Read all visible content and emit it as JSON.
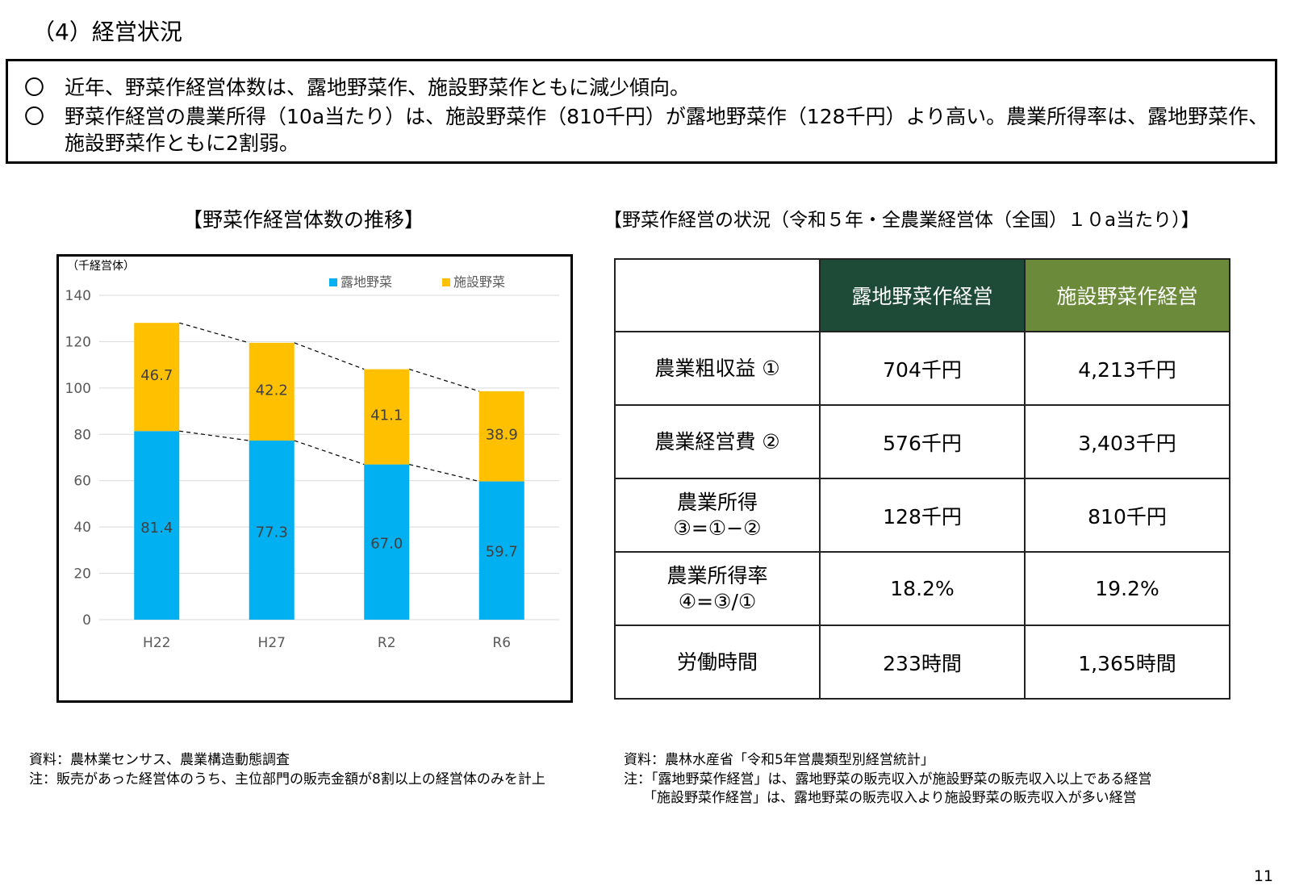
{
  "page": {
    "title": "（4）経営状況",
    "page_number": "11"
  },
  "summary": {
    "bullet_mark": "〇",
    "bullets": [
      "近年、野菜作経営体数は、露地野菜作、施設野菜作ともに減少傾向。",
      "野菜作経営の農業所得（10a当たり）は、施設野菜作（810千円）が露地野菜作（128千円）より高い。農業所得率は、露地野菜作、施設野菜作ともに2割弱。"
    ]
  },
  "chart_section": {
    "title": "【野菜作経営体数の推移】",
    "source_note": "資料：農林業センサス、農業構造動態調査",
    "note": "注：販売があった経営体のうち、主位部門の販売金額が8割以上の経営体のみを計上"
  },
  "chart_data": {
    "type": "bar",
    "stacked": true,
    "title": "",
    "xlabel": "",
    "ylabel": "（千経営体）",
    "categories": [
      "H22",
      "H27",
      "R2",
      "R6"
    ],
    "series": [
      {
        "name": "露地野菜",
        "values": [
          81.4,
          77.3,
          67.0,
          59.7
        ],
        "color": "#00b0f0"
      },
      {
        "name": "施設野菜",
        "values": [
          46.7,
          42.2,
          41.1,
          38.9
        ],
        "color": "#ffc000"
      }
    ],
    "data_labels": [
      [
        "81.4",
        "77.3",
        "67.0",
        "59.7"
      ],
      [
        "46.7",
        "42.2",
        "41.1",
        "38.9"
      ]
    ],
    "ylim": [
      0,
      140
    ],
    "yticks": [
      "0",
      "20",
      "40",
      "60",
      "80",
      "100",
      "120",
      "140"
    ],
    "grid": true,
    "legend": "top-right",
    "trend_lines": "dashed connectors between bar tops and series boundaries"
  },
  "table_section": {
    "title": "【野菜作経営の状況（令和５年・全農業経営体（全国）１０a当たり）】",
    "columns": [
      "",
      "露地野菜作経営",
      "施設野菜作経営"
    ],
    "rows": [
      {
        "label": [
          "農業粗収益 ①"
        ],
        "open": "704千円",
        "facility": "4,213千円"
      },
      {
        "label": [
          "農業経営費 ②"
        ],
        "open": "576千円",
        "facility": "3,403千円"
      },
      {
        "label": [
          "農業所得",
          "③=①−②"
        ],
        "open": "128千円",
        "facility": "810千円"
      },
      {
        "label": [
          "農業所得率",
          "④=③/①"
        ],
        "open": "18.2%",
        "facility": "19.2%"
      },
      {
        "label": [
          "労働時間"
        ],
        "open": "233時間",
        "facility": "1,365時間"
      }
    ],
    "header_colors": {
      "open": "#1e4b37",
      "facility": "#6b8a3a"
    },
    "source_note": "資料：農林水産省「令和5年営農類型別経営統計」",
    "notes": [
      "注：「露地野菜作経営」は、露地野菜の販売収入が施設野菜の販売収入以上である経営",
      "「施設野菜作経営」は、露地野菜の販売収入より施設野菜の販売収入が多い経営"
    ]
  }
}
